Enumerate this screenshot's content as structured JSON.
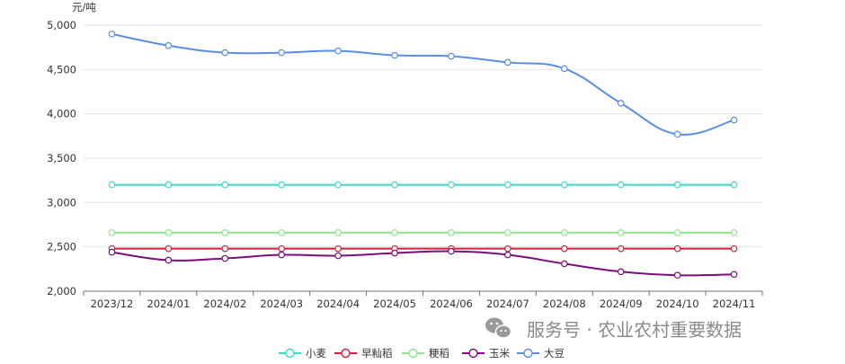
{
  "chart_data": {
    "type": "line",
    "title": "",
    "ylabel": "元/吨",
    "xlabel": "",
    "ylim": [
      2000,
      5000
    ],
    "yticks": [
      2000,
      2500,
      3000,
      3500,
      4000,
      4500,
      5000
    ],
    "ytick_labels": [
      "2,000",
      "2,500",
      "3,000",
      "3,500",
      "4,000",
      "4,500",
      "5,000"
    ],
    "categories": [
      "2023/12",
      "2024/01",
      "2024/02",
      "2024/03",
      "2024/04",
      "2024/05",
      "2024/06",
      "2024/07",
      "2024/08",
      "2024/09",
      "2024/10",
      "2024/11"
    ],
    "grid": true,
    "legend_position": "bottom-center",
    "series": [
      {
        "name": "小麦",
        "color": "#3fd8c8",
        "values": [
          3200,
          3200,
          3200,
          3200,
          3200,
          3200,
          3200,
          3200,
          3200,
          3200,
          3200,
          3200
        ]
      },
      {
        "name": "早籼稻",
        "color": "#d0213f",
        "values": [
          2480,
          2480,
          2480,
          2480,
          2480,
          2480,
          2480,
          2480,
          2480,
          2480,
          2480,
          2480
        ]
      },
      {
        "name": "粳稻",
        "color": "#8ee88a",
        "values": [
          2660,
          2660,
          2660,
          2660,
          2660,
          2660,
          2660,
          2660,
          2660,
          2660,
          2660,
          2660
        ]
      },
      {
        "name": "玉米",
        "color": "#7b0f7a",
        "values": [
          2440,
          2350,
          2370,
          2410,
          2400,
          2430,
          2450,
          2410,
          2310,
          2220,
          2180,
          2190
        ]
      },
      {
        "name": "大豆",
        "color": "#5b8ee3",
        "values": [
          4900,
          4770,
          4690,
          4690,
          4710,
          4660,
          4650,
          4580,
          4510,
          4120,
          3770,
          3930
        ]
      }
    ]
  },
  "watermark": {
    "text": "服务号 · 农业农村重要数据",
    "icon": "wechat-icon"
  }
}
